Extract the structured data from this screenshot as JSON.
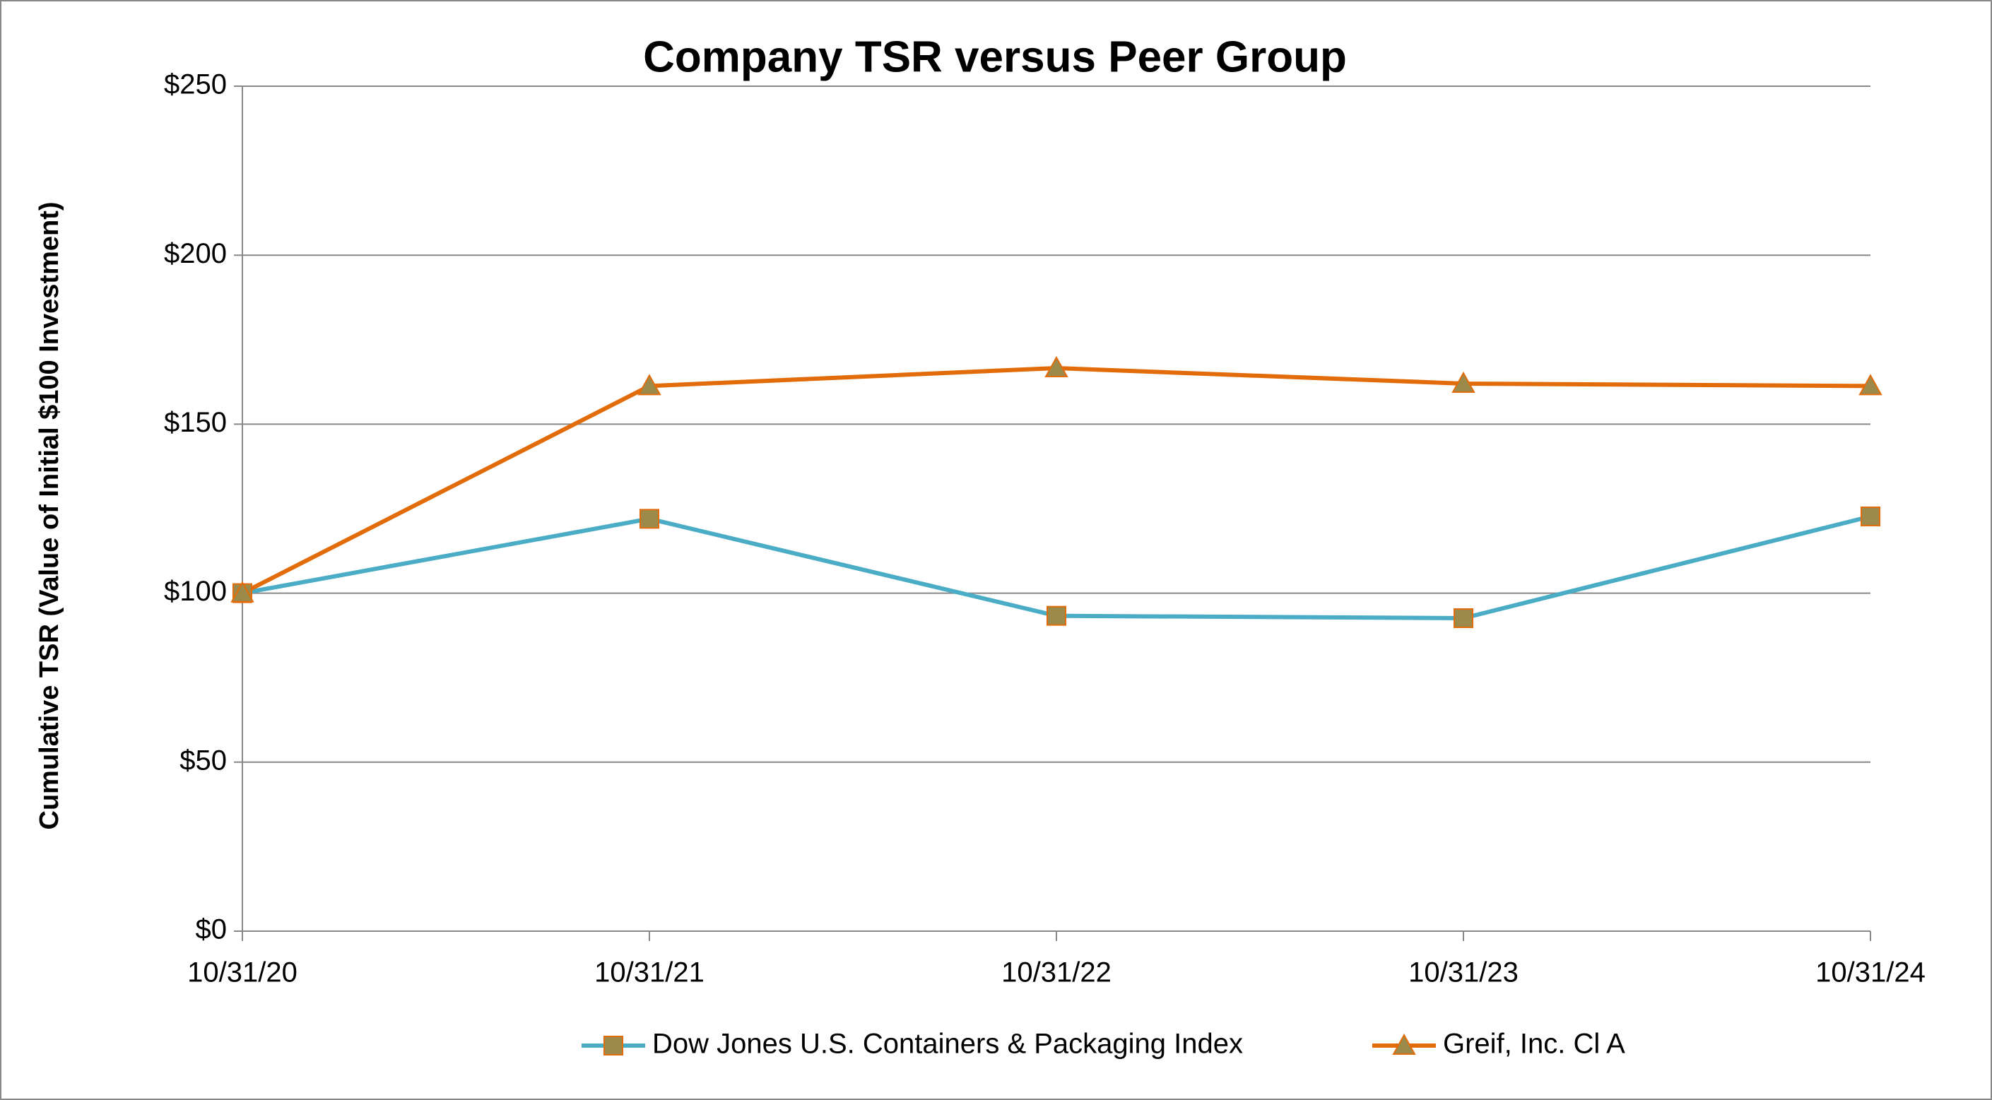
{
  "chart_data": {
    "type": "line",
    "title": "Company TSR versus Peer Group",
    "y_label": "Cumulative TSR (Value of Initial $100 Investment)",
    "categories": [
      "10/31/20",
      "10/31/21",
      "10/31/22",
      "10/31/23",
      "10/31/24"
    ],
    "series": [
      {
        "name": "Dow Jones U.S. Containers & Packaging Index",
        "color": "#4bacc6",
        "marker": "square",
        "marker_color": "#9c8a4a",
        "values": [
          100,
          122,
          93.3,
          92.6,
          122.7
        ]
      },
      {
        "name": "Greif, Inc. Cl A",
        "color": "#e36c0a",
        "marker": "triangle",
        "marker_color": "#9c8a4a",
        "values": [
          100,
          161.3,
          166.6,
          162,
          161.3
        ]
      }
    ],
    "ylim": [
      0,
      250
    ],
    "yticks": [
      {
        "value": 0,
        "label": "$0"
      },
      {
        "value": 50,
        "label": "$50"
      },
      {
        "value": 100,
        "label": "$100"
      },
      {
        "value": 150,
        "label": "$150"
      },
      {
        "value": 200,
        "label": "$200"
      },
      {
        "value": 250,
        "label": "$250"
      }
    ],
    "grid": true
  }
}
